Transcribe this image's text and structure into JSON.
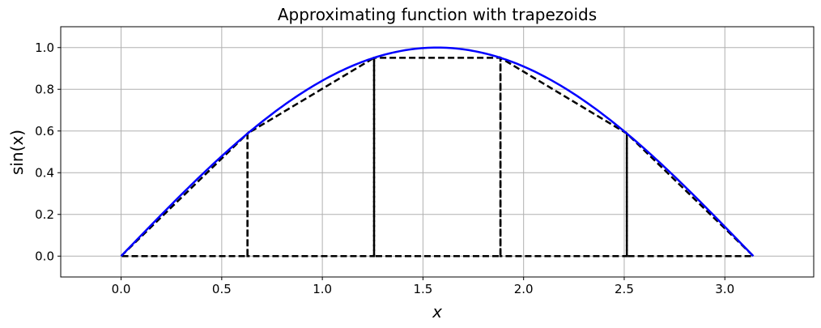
{
  "chart_data": {
    "type": "line",
    "title": "Approximating function with trapezoids",
    "xlabel": "x",
    "ylabel": "sin(x)",
    "xlim": [
      -0.3,
      3.4416
    ],
    "ylim": [
      -0.1,
      1.1
    ],
    "grid": true,
    "x_ticks": [
      0.0,
      0.5,
      1.0,
      1.5,
      2.0,
      2.5,
      3.0
    ],
    "x_tick_labels": [
      "0.0",
      "0.5",
      "1.0",
      "1.5",
      "2.0",
      "2.5",
      "3.0"
    ],
    "y_ticks": [
      0.0,
      0.2,
      0.4,
      0.6,
      0.8,
      1.0
    ],
    "y_tick_labels": [
      "0.0",
      "0.2",
      "0.4",
      "0.6",
      "0.8",
      "1.0"
    ],
    "function_curve": {
      "color": "#0000ff",
      "x_range": [
        0,
        3.1416
      ]
    },
    "trapezoid_nodes": {
      "x": [
        0.0,
        0.628,
        1.257,
        1.885,
        2.513,
        3.142
      ],
      "y": [
        0.0,
        0.588,
        0.951,
        0.951,
        0.588,
        0.0
      ]
    },
    "trapezoid_color": "#000000"
  }
}
